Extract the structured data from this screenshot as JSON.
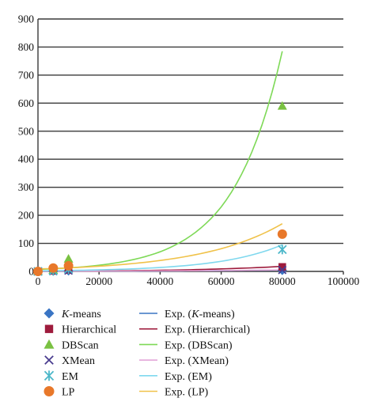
{
  "chart_data": {
    "type": "scatter",
    "title": "",
    "xlabel": "",
    "ylabel": "",
    "xlim": [
      0,
      100000
    ],
    "ylim": [
      0,
      900
    ],
    "x_ticks": [
      0,
      20000,
      40000,
      60000,
      80000,
      100000
    ],
    "y_ticks": [
      0,
      100,
      200,
      300,
      400,
      500,
      600,
      700,
      800,
      900
    ],
    "x_tick_labels": [
      "0",
      "20000",
      "40000",
      "60000",
      "80000",
      "100000"
    ],
    "y_tick_labels": [
      "0",
      "100",
      "200",
      "300",
      "400",
      "500",
      "600",
      "700",
      "800",
      "900"
    ],
    "grid": "horizontal",
    "legend_position": "bottom",
    "series": [
      {
        "name": "K-means",
        "name_prefix": "",
        "name_italic": "K",
        "name_suffix": "-means",
        "marker": "diamond",
        "color": "#3a75c4",
        "x": [
          0,
          5000,
          10000,
          80000
        ],
        "y": [
          0,
          1,
          2,
          4
        ]
      },
      {
        "name": "Hierarchical",
        "name_prefix": "",
        "name_italic": "",
        "name_suffix": "Hierarchical",
        "marker": "square",
        "color": "#9e1b3c",
        "x": [
          0,
          5000,
          10000,
          80000
        ],
        "y": [
          0,
          2,
          5,
          16
        ]
      },
      {
        "name": "DBScan",
        "name_prefix": "",
        "name_italic": "",
        "name_suffix": "DBScan",
        "marker": "triangle",
        "color": "#7ac142",
        "x": [
          0,
          5000,
          10000,
          80000
        ],
        "y": [
          0,
          5,
          45,
          590
        ]
      },
      {
        "name": "XMean",
        "name_prefix": "",
        "name_italic": "",
        "name_suffix": "XMean",
        "marker": "x",
        "color": "#4a3d8f",
        "x": [
          0,
          5000,
          10000,
          80000
        ],
        "y": [
          0,
          1,
          3,
          5
        ]
      },
      {
        "name": "EM",
        "name_prefix": "",
        "name_italic": "",
        "name_suffix": "EM",
        "marker": "star",
        "color": "#4bb7c9",
        "x": [
          0,
          5000,
          10000,
          80000
        ],
        "y": [
          0,
          2,
          8,
          78
        ]
      },
      {
        "name": "LP",
        "name_prefix": "",
        "name_italic": "",
        "name_suffix": "LP",
        "marker": "circle",
        "color": "#e8782a",
        "x": [
          0,
          5000,
          10000,
          80000
        ],
        "y": [
          0,
          12,
          20,
          133
        ]
      }
    ],
    "trendlines": [
      {
        "name": "Exp. (K-means)",
        "name_prefix": "Exp. (",
        "name_italic": "K",
        "name_suffix": "-means)",
        "color": "#3a75c4",
        "type": "exponential",
        "x": [
          0,
          20000,
          40000,
          60000,
          80000
        ],
        "y": [
          0.5,
          0.9,
          1.6,
          2.8,
          4.9
        ]
      },
      {
        "name": "Exp. (Hierarchical)",
        "name_prefix": "",
        "name_italic": "",
        "name_suffix": "Exp. (Hierarchical)",
        "color": "#9e1b3c",
        "type": "exponential",
        "x": [
          0,
          20000,
          40000,
          60000,
          80000
        ],
        "y": [
          1,
          2,
          4,
          9,
          18
        ]
      },
      {
        "name": "Exp. (DBScan)",
        "name_prefix": "",
        "name_italic": "",
        "name_suffix": "Exp. (DBScan)",
        "color": "#7ed957",
        "type": "exponential",
        "x": [
          0,
          20000,
          40000,
          60000,
          80000
        ],
        "y": [
          7.1,
          22,
          70,
          230,
          785
        ]
      },
      {
        "name": "Exp. (XMean)",
        "name_prefix": "",
        "name_italic": "",
        "name_suffix": "Exp. (XMean)",
        "color": "#e3a6d8",
        "type": "exponential",
        "x": [
          0,
          20000,
          40000,
          60000,
          80000
        ],
        "y": [
          0.5,
          1,
          1.7,
          3,
          5.5
        ]
      },
      {
        "name": "Exp. (EM)",
        "name_prefix": "",
        "name_italic": "",
        "name_suffix": "Exp. (EM)",
        "color": "#7fd8ee",
        "type": "exponential",
        "x": [
          0,
          20000,
          40000,
          60000,
          80000
        ],
        "y": [
          2,
          5.5,
          14,
          36,
          95
        ]
      },
      {
        "name": "Exp. (LP)",
        "name_prefix": "",
        "name_italic": "",
        "name_suffix": "Exp. (LP)",
        "color": "#f0c24a",
        "type": "exponential",
        "x": [
          0,
          20000,
          40000,
          60000,
          80000
        ],
        "y": [
          8.7,
          18.5,
          39,
          81,
          170
        ]
      }
    ]
  }
}
